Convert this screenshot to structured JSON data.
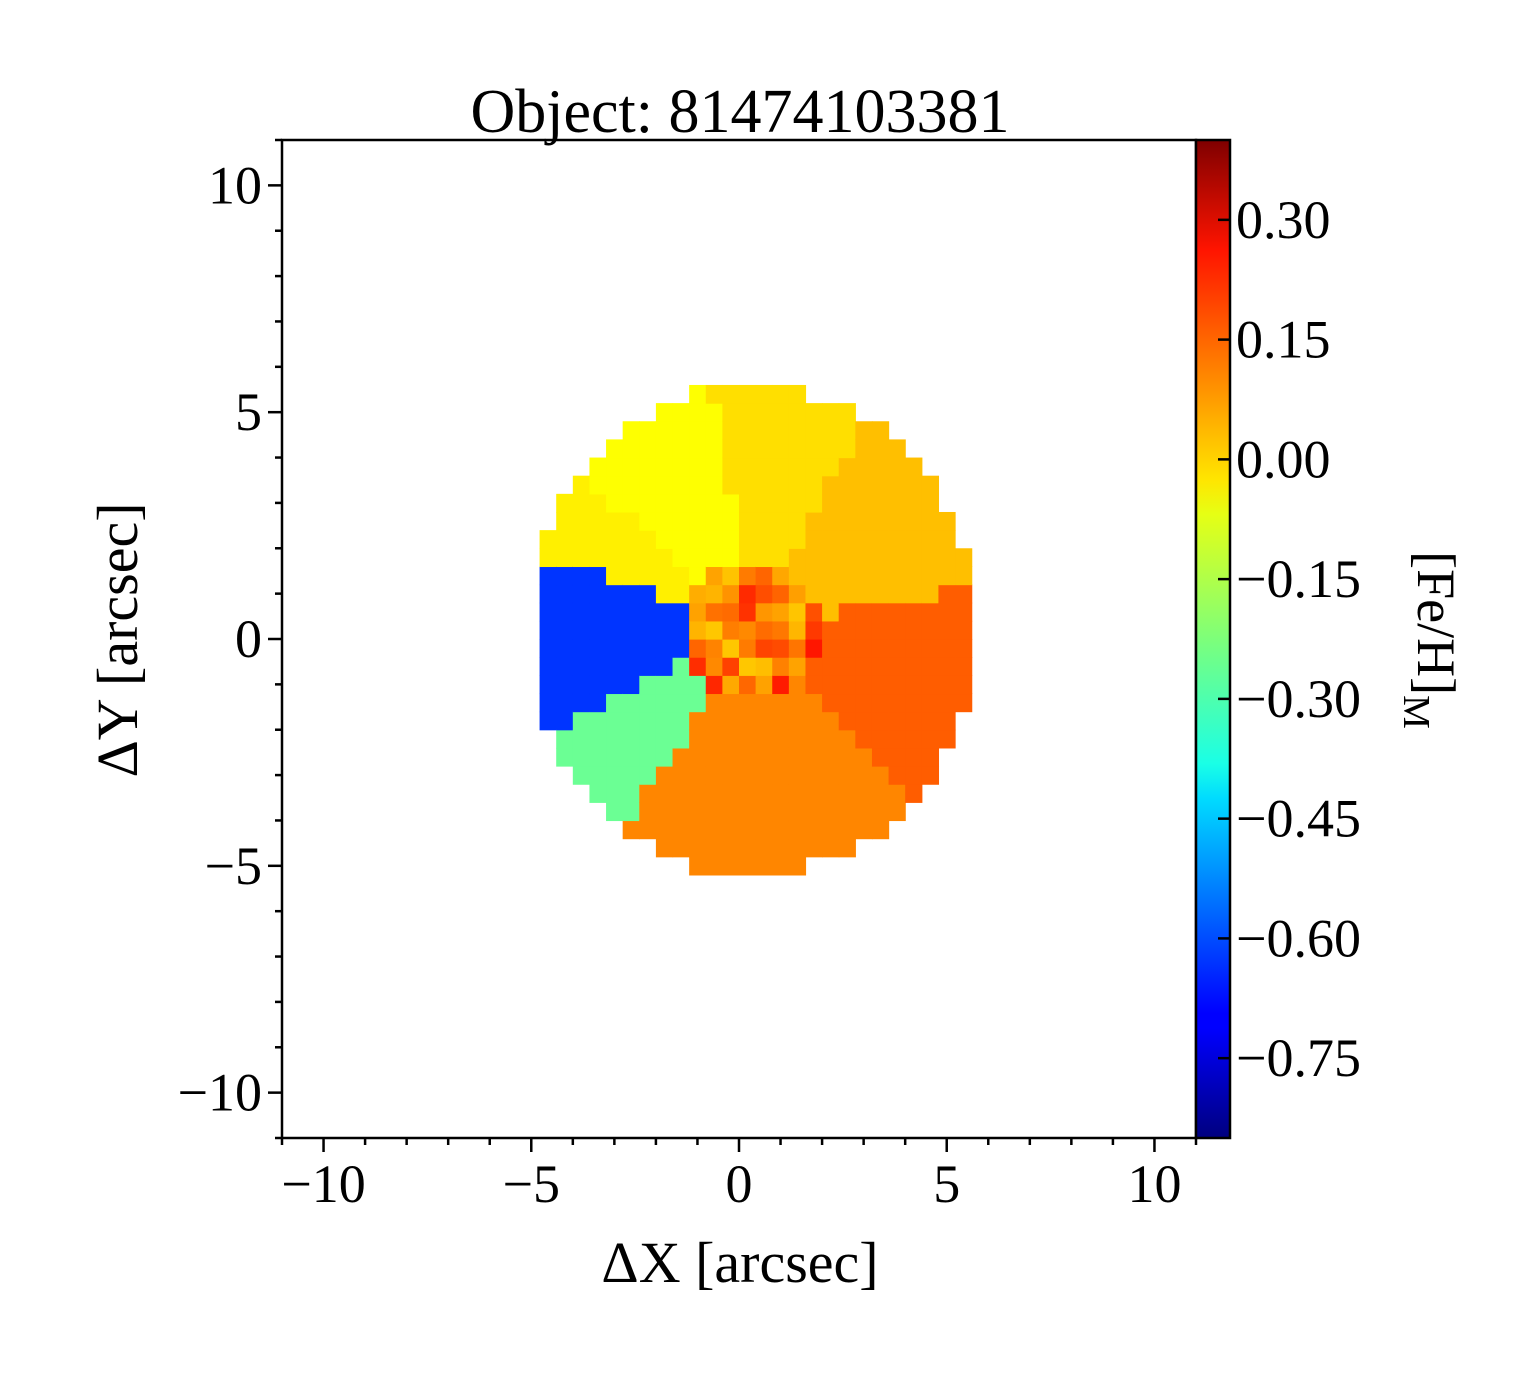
{
  "chart_data": {
    "type": "heatmap",
    "title": "Object: 81474103381",
    "xlabel": "ΔX [arcsec]",
    "ylabel": "ΔY [arcsec]",
    "xlim": [
      -11,
      11
    ],
    "ylim": [
      -11,
      11
    ],
    "xticks": [
      {
        "value": -10,
        "label": "−10"
      },
      {
        "value": -5,
        "label": "−5"
      },
      {
        "value": 0,
        "label": "0"
      },
      {
        "value": 5,
        "label": "5"
      },
      {
        "value": 10,
        "label": "10"
      }
    ],
    "yticks": [
      {
        "value": 10,
        "label": "10"
      },
      {
        "value": 5,
        "label": "5"
      },
      {
        "value": 0,
        "label": "0"
      },
      {
        "value": -5,
        "label": "−5"
      },
      {
        "value": -10,
        "label": "−10"
      }
    ],
    "colorbar": {
      "label_main": "[Fe/H]",
      "label_sub": "M",
      "colormap": "jet",
      "range": [
        -0.85,
        0.4
      ],
      "ticks": [
        {
          "value": 0.3,
          "label": "0.30"
        },
        {
          "value": 0.15,
          "label": "0.15"
        },
        {
          "value": 0.0,
          "label": "0.00"
        },
        {
          "value": -0.15,
          "label": "−0.15"
        },
        {
          "value": -0.3,
          "label": "−0.30"
        },
        {
          "value": -0.45,
          "label": "−0.45"
        },
        {
          "value": -0.6,
          "label": "−0.60"
        },
        {
          "value": -0.75,
          "label": "−0.75"
        }
      ]
    },
    "map": {
      "center": [
        0.3,
        0.2
      ],
      "radius": 5.4,
      "regions": [
        {
          "name": "north-west",
          "ang_from": 100,
          "ang_to": 140,
          "value": -0.07
        },
        {
          "name": "north-north-west",
          "ang_from": 140,
          "ang_to": 162,
          "value": -0.05
        },
        {
          "name": "north",
          "ang_from": 60,
          "ang_to": 100,
          "value": -0.03
        },
        {
          "name": "north-east",
          "ang_from": 10,
          "ang_to": 60,
          "value": 0.01
        },
        {
          "name": "east",
          "ang_from": -45,
          "ang_to": 10,
          "value": 0.13
        },
        {
          "name": "south-east",
          "ang_from": -90,
          "ang_to": -45,
          "value": 0.08
        },
        {
          "name": "south",
          "ang_from": -125,
          "ang_to": -90,
          "value": 0.08
        },
        {
          "name": "south-west",
          "ang_from": -155,
          "ang_to": -125,
          "value": -0.25
        },
        {
          "name": "west",
          "ang_from": 162,
          "ang_to": 205,
          "value": -0.63
        }
      ],
      "inner_region_value": 0.11,
      "notch": {
        "center": [
          -6.0,
          0.2
        ],
        "radius": 1.3
      }
    }
  }
}
